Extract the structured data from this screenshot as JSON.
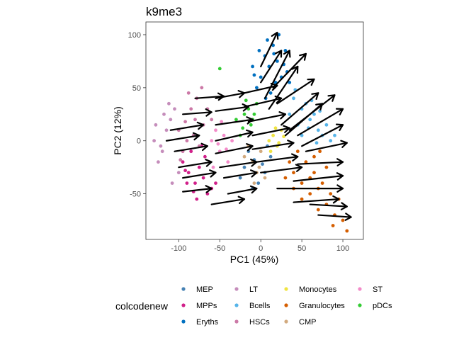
{
  "chart_data": {
    "type": "scatter",
    "title": "k9me3",
    "xlabel": "PC1 (45%)",
    "ylabel": "PC2 (12%)",
    "xlim": [
      -140,
      125
    ],
    "ylim": [
      -93,
      112
    ],
    "xticks": [
      -100,
      -50,
      0,
      50,
      100
    ],
    "yticks": [
      -50,
      0,
      50,
      100
    ],
    "grid": false,
    "legend": {
      "title": "colcodenew",
      "position": "bottom",
      "columns": 4
    },
    "series": [
      {
        "name": "MEP",
        "color": "#4682b4",
        "points": [
          [
            -8,
            -18
          ],
          [
            2,
            -22
          ],
          [
            -15,
            -10
          ],
          [
            5,
            -30
          ],
          [
            -20,
            -25
          ],
          [
            -3,
            -40
          ],
          [
            12,
            -15
          ],
          [
            -25,
            -35
          ],
          [
            8,
            -5
          ],
          [
            -10,
            -45
          ]
        ]
      },
      {
        "name": "MPPs",
        "color": "#d1208a",
        "points": [
          [
            -95,
            -20
          ],
          [
            -88,
            -30
          ],
          [
            -80,
            -40
          ],
          [
            -70,
            -35
          ],
          [
            -65,
            -50
          ],
          [
            -85,
            -10
          ],
          [
            -75,
            -25
          ],
          [
            -60,
            -45
          ],
          [
            -90,
            -40
          ],
          [
            -78,
            -55
          ],
          [
            -68,
            -15
          ],
          [
            -55,
            -40
          ],
          [
            -82,
            -48
          ],
          [
            -72,
            -5
          ],
          [
            -92,
            -28
          ]
        ]
      },
      {
        "name": "Eryths",
        "color": "#0070c0",
        "points": [
          [
            0,
            60
          ],
          [
            5,
            80
          ],
          [
            10,
            70
          ],
          [
            15,
            90
          ],
          [
            20,
            75
          ],
          [
            -5,
            50
          ],
          [
            25,
            60
          ],
          [
            30,
            85
          ],
          [
            8,
            95
          ],
          [
            18,
            55
          ],
          [
            -10,
            70
          ],
          [
            12,
            45
          ],
          [
            28,
            72
          ],
          [
            35,
            55
          ],
          [
            -2,
            85
          ],
          [
            22,
            100
          ],
          [
            6,
            40
          ],
          [
            32,
            65
          ],
          [
            -8,
            62
          ],
          [
            16,
            82
          ]
        ]
      },
      {
        "name": "LT",
        "color": "#c58dbb",
        "points": [
          [
            -130,
            0
          ],
          [
            -120,
            -10
          ],
          [
            -115,
            10
          ],
          [
            -125,
            -20
          ],
          [
            -110,
            20
          ],
          [
            -105,
            30
          ],
          [
            -100,
            -30
          ],
          [
            -118,
            25
          ],
          [
            -128,
            15
          ],
          [
            -108,
            -40
          ],
          [
            -112,
            35
          ],
          [
            -122,
            -5
          ]
        ]
      },
      {
        "name": "Bcells",
        "color": "#56b4e9",
        "points": [
          [
            40,
            40
          ],
          [
            50,
            30
          ],
          [
            60,
            20
          ],
          [
            70,
            10
          ],
          [
            45,
            15
          ],
          [
            55,
            35
          ],
          [
            65,
            25
          ],
          [
            75,
            5
          ],
          [
            80,
            15
          ],
          [
            85,
            0
          ],
          [
            50,
            5
          ],
          [
            35,
            25
          ],
          [
            62,
            38
          ],
          [
            72,
            28
          ],
          [
            90,
            5
          ],
          [
            42,
            48
          ],
          [
            58,
            12
          ],
          [
            68,
            -2
          ]
        ]
      },
      {
        "name": "HSCs",
        "color": "#cc79a7",
        "points": [
          [
            -100,
            10
          ],
          [
            -90,
            0
          ],
          [
            -80,
            20
          ],
          [
            -95,
            -10
          ],
          [
            -85,
            30
          ],
          [
            -70,
            15
          ],
          [
            -75,
            -5
          ],
          [
            -88,
            45
          ],
          [
            -78,
            40
          ],
          [
            -65,
            30
          ],
          [
            -92,
            18
          ],
          [
            -82,
            5
          ],
          [
            -60,
            20
          ],
          [
            -98,
            -18
          ],
          [
            -72,
            50
          ]
        ]
      },
      {
        "name": "Monocytes",
        "color": "#f0e442",
        "points": [
          [
            10,
            0
          ],
          [
            15,
            5
          ],
          [
            20,
            -5
          ],
          [
            25,
            10
          ],
          [
            12,
            -10
          ],
          [
            18,
            12
          ],
          [
            22,
            -2
          ],
          [
            28,
            4
          ]
        ]
      },
      {
        "name": "Granulocytes",
        "color": "#d55e00",
        "points": [
          [
            40,
            -30
          ],
          [
            50,
            -40
          ],
          [
            60,
            -50
          ],
          [
            70,
            -45
          ],
          [
            80,
            -60
          ],
          [
            55,
            -20
          ],
          [
            65,
            -30
          ],
          [
            75,
            -40
          ],
          [
            85,
            -50
          ],
          [
            90,
            -70
          ],
          [
            45,
            -10
          ],
          [
            35,
            -20
          ],
          [
            95,
            -55
          ],
          [
            100,
            -75
          ],
          [
            70,
            -65
          ],
          [
            60,
            -35
          ],
          [
            50,
            -55
          ],
          [
            80,
            -25
          ],
          [
            88,
            -80
          ],
          [
            40,
            -45
          ],
          [
            30,
            -35
          ],
          [
            65,
            -15
          ],
          [
            105,
            -85
          ],
          [
            72,
            -10
          ]
        ]
      },
      {
        "name": "CMP",
        "color": "#d2aa7e",
        "points": [
          [
            -10,
            -20
          ],
          [
            -5,
            -30
          ],
          [
            0,
            -10
          ],
          [
            5,
            -35
          ],
          [
            -15,
            -5
          ],
          [
            -20,
            -15
          ],
          [
            -2,
            -25
          ],
          [
            -8,
            -40
          ]
        ]
      },
      {
        "name": "ST",
        "color": "#f38bc9",
        "points": [
          [
            -60,
            0
          ],
          [
            -50,
            -10
          ],
          [
            -55,
            10
          ],
          [
            -45,
            5
          ],
          [
            -40,
            -20
          ],
          [
            -35,
            0
          ],
          [
            -58,
            -25
          ],
          [
            -48,
            18
          ],
          [
            -42,
            -8
          ],
          [
            -52,
            -3
          ]
        ]
      },
      {
        "name": "pDCs",
        "color": "#33cc33",
        "points": [
          [
            -15,
            30
          ],
          [
            -10,
            20
          ],
          [
            -20,
            25
          ],
          [
            -5,
            35
          ],
          [
            -12,
            15
          ],
          [
            -25,
            5
          ],
          [
            -30,
            20
          ],
          [
            -8,
            25
          ],
          [
            -50,
            68
          ],
          [
            -18,
            38
          ],
          [
            -22,
            12
          ]
        ]
      }
    ],
    "arrows": [
      [
        [
          -80,
          40
        ],
        [
          -45,
          42
        ]
      ],
      [
        [
          -95,
          25
        ],
        [
          -60,
          27
        ]
      ],
      [
        [
          -110,
          10
        ],
        [
          -70,
          15
        ]
      ],
      [
        [
          -115,
          0
        ],
        [
          -75,
          5
        ]
      ],
      [
        [
          -105,
          -10
        ],
        [
          -65,
          -5
        ]
      ],
      [
        [
          -100,
          -25
        ],
        [
          -60,
          -20
        ]
      ],
      [
        [
          -95,
          -35
        ],
        [
          -55,
          -30
        ]
      ],
      [
        [
          -95,
          -48
        ],
        [
          -60,
          -45
        ]
      ],
      [
        [
          -60,
          -60
        ],
        [
          -20,
          -55
        ]
      ],
      [
        [
          -40,
          -50
        ],
        [
          -5,
          -45
        ]
      ],
      [
        [
          -55,
          40
        ],
        [
          -20,
          45
        ]
      ],
      [
        [
          -55,
          28
        ],
        [
          -15,
          32
        ]
      ],
      [
        [
          -55,
          15
        ],
        [
          -10,
          20
        ]
      ],
      [
        [
          -55,
          0
        ],
        [
          -10,
          8
        ]
      ],
      [
        [
          -55,
          -12
        ],
        [
          -10,
          -5
        ]
      ],
      [
        [
          -50,
          -25
        ],
        [
          -5,
          -20
        ]
      ],
      [
        [
          -45,
          -35
        ],
        [
          -5,
          -30
        ]
      ],
      [
        [
          -20,
          45
        ],
        [
          20,
          52
        ]
      ],
      [
        [
          -20,
          32
        ],
        [
          25,
          40
        ]
      ],
      [
        [
          -15,
          18
        ],
        [
          30,
          25
        ]
      ],
      [
        [
          -10,
          5
        ],
        [
          35,
          12
        ]
      ],
      [
        [
          -10,
          -8
        ],
        [
          40,
          -2
        ]
      ],
      [
        [
          -5,
          -20
        ],
        [
          45,
          -15
        ]
      ],
      [
        [
          0,
          -30
        ],
        [
          50,
          -25
        ]
      ],
      [
        [
          0,
          70
        ],
        [
          20,
          102
        ]
      ],
      [
        [
          0,
          55
        ],
        [
          25,
          85
        ]
      ],
      [
        [
          5,
          40
        ],
        [
          35,
          85
        ]
      ],
      [
        [
          10,
          30
        ],
        [
          45,
          70
        ]
      ],
      [
        [
          15,
          50
        ],
        [
          55,
          82
        ]
      ],
      [
        [
          20,
          35
        ],
        [
          65,
          58
        ]
      ],
      [
        [
          25,
          15
        ],
        [
          70,
          45
        ]
      ],
      [
        [
          30,
          5
        ],
        [
          75,
          35
        ]
      ],
      [
        [
          35,
          10
        ],
        [
          90,
          43
        ]
      ],
      [
        [
          45,
          5
        ],
        [
          100,
          30
        ]
      ],
      [
        [
          50,
          -5
        ],
        [
          100,
          15
        ]
      ],
      [
        [
          55,
          -10
        ],
        [
          105,
          -2
        ]
      ],
      [
        [
          45,
          -22
        ],
        [
          100,
          -20
        ]
      ],
      [
        [
          40,
          -38
        ],
        [
          100,
          -33
        ]
      ],
      [
        [
          20,
          -45
        ],
        [
          100,
          -45
        ]
      ],
      [
        [
          40,
          -58
        ],
        [
          95,
          -55
        ]
      ],
      [
        [
          60,
          -60
        ],
        [
          105,
          -62
        ]
      ],
      [
        [
          70,
          -70
        ],
        [
          110,
          -72
        ]
      ]
    ]
  }
}
